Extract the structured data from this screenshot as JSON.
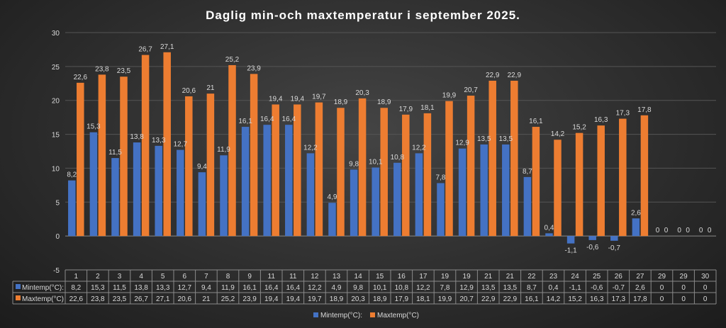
{
  "chart_data": {
    "type": "bar",
    "title": "Daglig min-och maxtemperatur i september 2025.",
    "xlabel": "",
    "ylabel": "",
    "ylim": [
      -5,
      30
    ],
    "yticks": [
      "-5",
      "0",
      "5",
      "10",
      "15",
      "20",
      "25",
      "30"
    ],
    "grid": true,
    "legend_placement": "bottom",
    "categories": [
      "1",
      "2",
      "3",
      "4",
      "5",
      "6",
      "7",
      "8",
      "9",
      "11",
      "11",
      "12",
      "13",
      "14",
      "15",
      "16",
      "17",
      "19",
      "19",
      "21",
      "21",
      "22",
      "23",
      "24",
      "25",
      "26",
      "27",
      "29",
      "29",
      "30"
    ],
    "series": [
      {
        "name": "Mintemp(°C):",
        "color": "#4472c4",
        "values": [
          8.2,
          15.3,
          11.5,
          13.8,
          13.3,
          12.7,
          9.4,
          11.9,
          16.1,
          16.4,
          16.4,
          12.2,
          4.9,
          9.8,
          10.1,
          10.8,
          12.2,
          7.8,
          12.9,
          13.5,
          13.5,
          8.7,
          0.4,
          -1.1,
          -0.6,
          -0.7,
          2.6,
          0,
          0,
          0
        ],
        "labels": [
          "8,2",
          "15,3",
          "11,5",
          "13,8",
          "13,3",
          "12,7",
          "9,4",
          "11,9",
          "16,1",
          "16,4",
          "16,4",
          "12,2",
          "4,9",
          "9,8",
          "10,1",
          "10,8",
          "12,2",
          "7,8",
          "12,9",
          "13,5",
          "13,5",
          "8,7",
          "0,4",
          "-1,1",
          "-0,6",
          "-0,7",
          "2,6",
          "0",
          "0",
          "0"
        ]
      },
      {
        "name": "Maxtemp(°C)",
        "color": "#ed7d31",
        "values": [
          22.6,
          23.8,
          23.5,
          26.7,
          27.1,
          20.6,
          21,
          25.2,
          23.9,
          19.4,
          19.4,
          19.7,
          18.9,
          20.3,
          18.9,
          17.9,
          18.1,
          19.9,
          20.7,
          22.9,
          22.9,
          16.1,
          14.2,
          15.2,
          16.3,
          17.3,
          17.8,
          0,
          0,
          0
        ],
        "labels": [
          "22,6",
          "23,8",
          "23,5",
          "26,7",
          "27,1",
          "20,6",
          "21",
          "25,2",
          "23,9",
          "19,4",
          "19,4",
          "19,7",
          "18,9",
          "20,3",
          "18,9",
          "17,9",
          "18,1",
          "19,9",
          "20,7",
          "22,9",
          "22,9",
          "16,1",
          "14,2",
          "15,2",
          "16,3",
          "17,3",
          "17,8",
          "0",
          "0",
          "0"
        ]
      }
    ]
  }
}
